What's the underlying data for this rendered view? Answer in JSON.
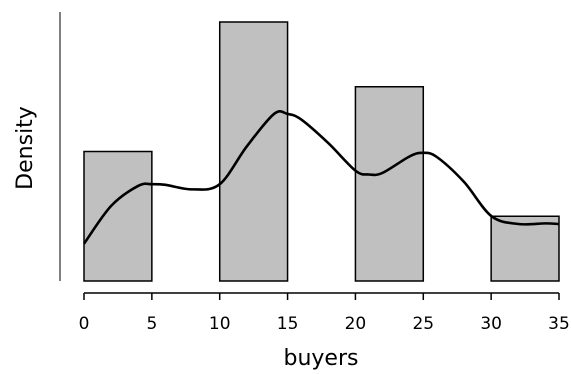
{
  "chart_data": {
    "type": "bar",
    "subtype": "histogram-with-density-curve",
    "title": "",
    "xlabel": "buyers",
    "ylabel": "Density",
    "xlim": [
      0,
      35
    ],
    "x_ticks": [
      0,
      5,
      10,
      15,
      20,
      25,
      30,
      35
    ],
    "y_ticks_shown": false,
    "grid": false,
    "legend": "none",
    "bins": [
      {
        "start": 0,
        "end": 5,
        "density": 0.04
      },
      {
        "start": 5,
        "end": 10,
        "density": 0.0
      },
      {
        "start": 10,
        "end": 15,
        "density": 0.08
      },
      {
        "start": 15,
        "end": 20,
        "density": 0.0
      },
      {
        "start": 20,
        "end": 25,
        "density": 0.06
      },
      {
        "start": 25,
        "end": 30,
        "density": 0.0
      },
      {
        "start": 30,
        "end": 35,
        "density": 0.02
      }
    ],
    "density_curve": {
      "x": [
        0,
        2,
        4,
        5,
        6,
        8,
        10,
        12,
        14,
        15,
        16,
        18,
        20,
        21,
        22,
        24,
        25,
        26,
        28,
        30,
        32,
        34,
        35
      ],
      "y": [
        0.0115,
        0.0232,
        0.0294,
        0.0299,
        0.0297,
        0.0283,
        0.0299,
        0.0416,
        0.0516,
        0.0516,
        0.0499,
        0.0426,
        0.0341,
        0.0329,
        0.0334,
        0.0385,
        0.0396,
        0.0383,
        0.0306,
        0.0201,
        0.0176,
        0.0178,
        0.0176
      ]
    },
    "colors": {
      "bar_fill": "#c0c0c0",
      "bar_stroke": "#000000",
      "curve": "#000000",
      "axis": "#000000"
    }
  }
}
